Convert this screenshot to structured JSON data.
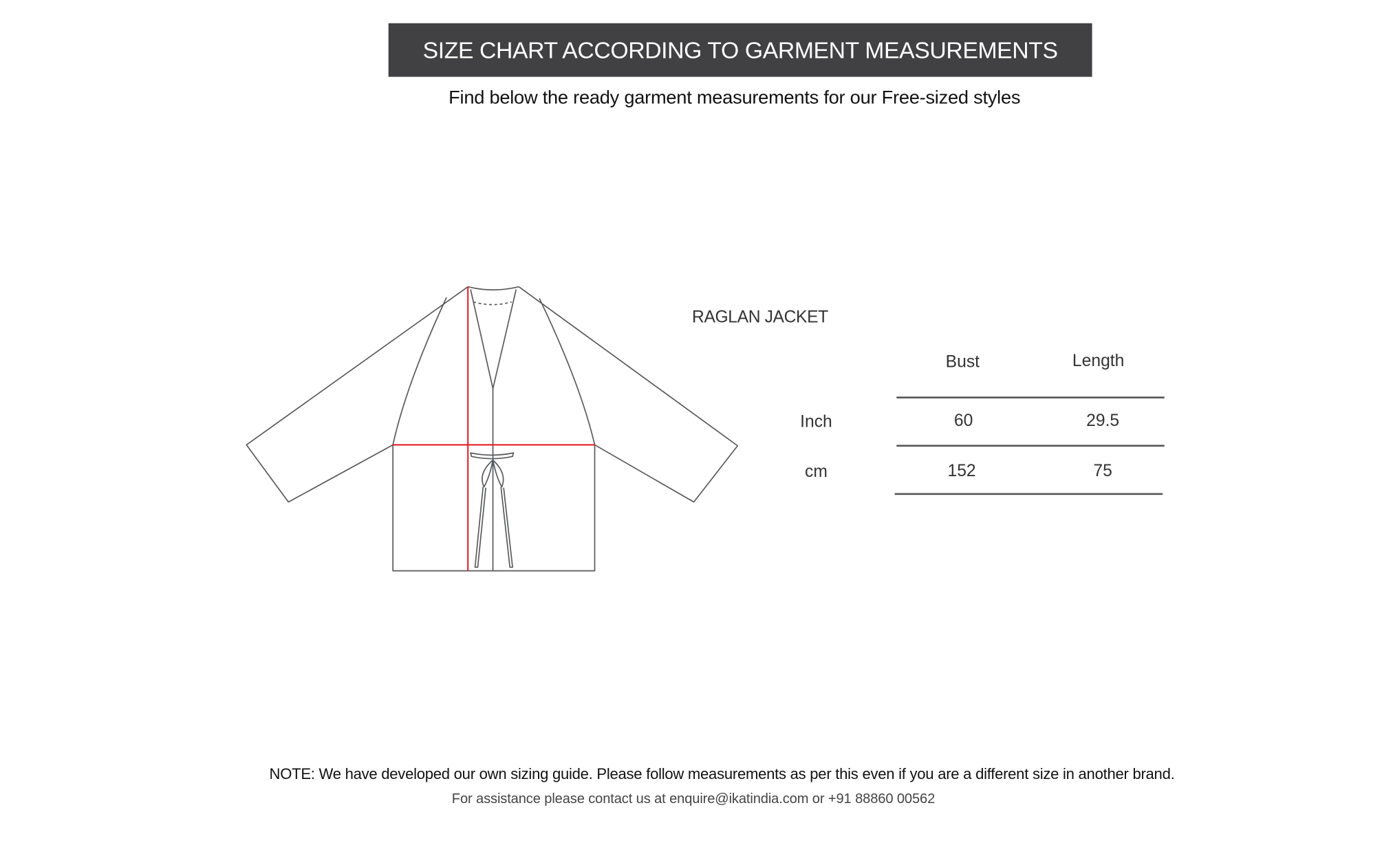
{
  "header": {
    "title": "SIZE CHART ACCORDING TO GARMENT MEASUREMENTS",
    "subtitle": "Find below the ready garment measurements for our Free-sized styles"
  },
  "garment": {
    "name": "RAGLAN JACKET",
    "outline_color": "#58595b",
    "measure_line_color": "#e21f26"
  },
  "table": {
    "columns": [
      "Bust",
      "Length"
    ],
    "rows": [
      {
        "unit": "Inch",
        "values": [
          "60",
          "29.5"
        ]
      },
      {
        "unit": "cm",
        "values": [
          "152",
          "75"
        ]
      }
    ]
  },
  "footer": {
    "note": "NOTE: We have developed our own sizing guide. Please follow measurements as per this even if you are a different size in another brand.",
    "assistance": "For assistance please contact us at enquire@ikatindia.com or +91 88860 00562"
  }
}
